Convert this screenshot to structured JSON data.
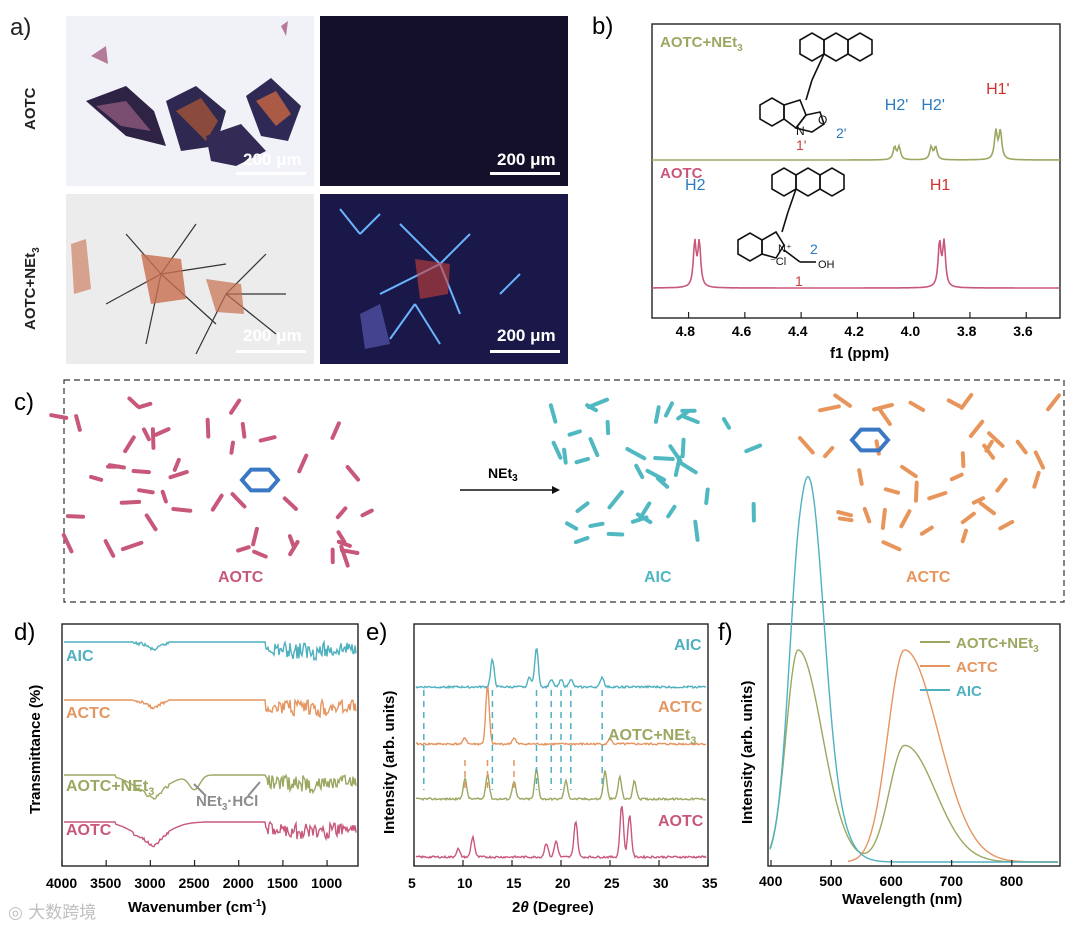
{
  "panels": {
    "a": "a)",
    "b": "b)",
    "c": "c)",
    "d": "d)",
    "e": "e)",
    "f": "f)"
  },
  "panel_a": {
    "row_labels": [
      "AOTC",
      "AOTC+NEt3"
    ],
    "scale_bar": "200 μm",
    "images": [
      {
        "name": "aotc-brightfield",
        "desc_color": "#f3f3f7"
      },
      {
        "name": "aotc-fluorescence",
        "desc_color": "#14102a"
      },
      {
        "name": "aotc-net3-brightfield",
        "desc_color": "#eeeeee"
      },
      {
        "name": "aotc-net3-fluorescence",
        "desc_color": "#1c1a4a"
      }
    ]
  },
  "panel_c": {
    "arrow_label": "NEt3",
    "labels": [
      "AOTC",
      "AIC",
      "ACTC"
    ],
    "colors": {
      "AOTC": "#c8587a",
      "AIC": "#4fb8c0",
      "ACTC": "#e8955b"
    }
  },
  "chart_data": [
    {
      "type": "line",
      "panel": "b",
      "xlabel": "f1 (ppm)",
      "x_ticks": [
        "4.8",
        "4.6",
        "4.4",
        "4.2",
        "4.0",
        "3.8",
        "3.6"
      ],
      "xlim": [
        4.93,
        3.48
      ],
      "reversed_x": true,
      "series": [
        {
          "name": "AOTC+NEt3",
          "color": "#9aa861",
          "peaks": [
            {
              "x": 4.06,
              "label": "H2'"
            },
            {
              "x": 3.93,
              "label": "H2'"
            },
            {
              "x": 3.7,
              "label": "H1'"
            }
          ]
        },
        {
          "name": "AOTC",
          "color": "#c8587a",
          "peaks": [
            {
              "x": 4.77,
              "label": "H2"
            },
            {
              "x": 3.9,
              "label": "H1"
            }
          ]
        }
      ],
      "annotations": [
        "1'",
        "2'",
        "1",
        "2"
      ]
    },
    {
      "type": "line",
      "panel": "d",
      "xlabel": "Wavenumber (cm-1)",
      "ylabel": "Transmittance (%)",
      "x_ticks": [
        "4000",
        "3500",
        "3000",
        "2500",
        "2000",
        "1500",
        "1000"
      ],
      "xlim": [
        4000,
        650
      ],
      "series": [
        {
          "name": "AIC",
          "color": "#4fb1bf"
        },
        {
          "name": "ACTC",
          "color": "#e59560"
        },
        {
          "name": "AOTC+NEt3",
          "color": "#9aa861"
        },
        {
          "name": "AOTC",
          "color": "#c8587a"
        }
      ],
      "annotation": "NEt3·HCl"
    },
    {
      "type": "line",
      "panel": "e",
      "xlabel": "2θ (Degree)",
      "ylabel": "Intensity (arb. units)",
      "x_ticks": [
        "5",
        "10",
        "15",
        "20",
        "25",
        "30",
        "35"
      ],
      "xlim": [
        5,
        35
      ],
      "series": [
        {
          "name": "AIC",
          "color": "#4fb1bf",
          "peaks": [
            6.0,
            13.0,
            17.5,
            19.0,
            20.0,
            21.0,
            24.2
          ]
        },
        {
          "name": "ACTC",
          "color": "#e59560",
          "peaks": [
            10.2,
            12.5,
            15.2
          ]
        },
        {
          "name": "AOTC+NEt3",
          "color": "#9aa861"
        },
        {
          "name": "AOTC",
          "color": "#c8587a"
        }
      ]
    },
    {
      "type": "line",
      "panel": "f",
      "xlabel": "Wavelength (nm)",
      "ylabel": "Intensity (arb. units)",
      "x_ticks": [
        "400",
        "500",
        "600",
        "700",
        "800"
      ],
      "xlim": [
        395,
        880
      ],
      "series": [
        {
          "name": "AOTC+NEt3",
          "color": "#9aa861",
          "peaks": [
            {
              "x": 445,
              "h": 1.0
            },
            {
              "x": 622,
              "h": 0.55
            }
          ]
        },
        {
          "name": "ACTC",
          "color": "#e59560",
          "peaks": [
            {
              "x": 622,
              "h": 1.0
            }
          ]
        },
        {
          "name": "AIC",
          "color": "#4fb1bf",
          "peaks": [
            {
              "x": 447,
              "h": 1.0
            }
          ]
        }
      ]
    }
  ]
}
